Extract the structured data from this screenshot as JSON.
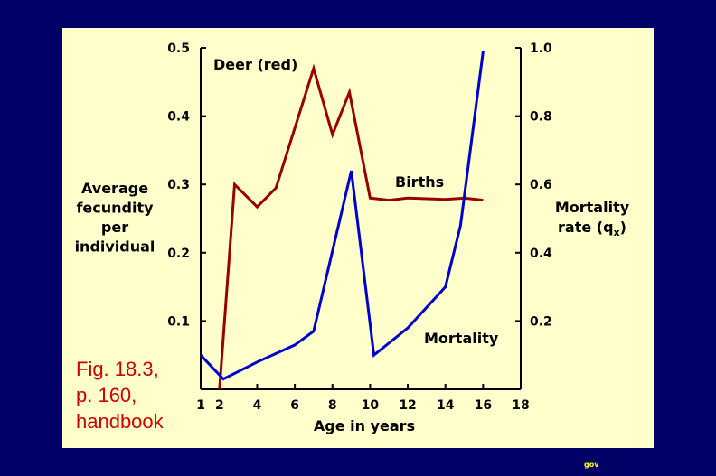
{
  "slide": {
    "caption_lines": [
      "Fig. 18.3,",
      "p. 160,",
      "handbook"
    ],
    "footer": "gov",
    "colors": {
      "background": "#000066",
      "panel": "#ffffcc",
      "caption": "#cc0000",
      "footer": "#ffff00"
    }
  },
  "chart_data": {
    "type": "line",
    "xlabel": "Age in years",
    "ylabel_left_lines": [
      "Average",
      "fecundity",
      "per",
      "individual"
    ],
    "ylabel_right_lines": [
      "Mortality",
      "rate (q"
    ],
    "ylabel_right_subscript": "x",
    "ylabel_right_suffix": ")",
    "xlim": [
      1,
      18
    ],
    "x_ticks": [
      1,
      2,
      4,
      6,
      8,
      10,
      12,
      14,
      16,
      18
    ],
    "ylim_left": [
      0,
      0.5
    ],
    "y_ticks_left": [
      "0.1",
      "0.2",
      "0.3",
      "0.4",
      "0.5"
    ],
    "ylim_right": [
      0,
      1.0
    ],
    "y_ticks_right": [
      "0.2",
      "0.4",
      "0.6",
      "0.8",
      "1.0"
    ],
    "annotations": {
      "deer": "Deer (red)",
      "births": "Births",
      "mortality": "Mortality"
    },
    "series": [
      {
        "name": "Births",
        "axis": "left",
        "color": "#990000",
        "x": [
          2,
          2.8,
          4,
          5,
          7,
          8,
          8.9,
          10,
          11,
          12,
          14,
          15,
          16
        ],
        "y": [
          0,
          0.3,
          0.267,
          0.295,
          0.47,
          0.373,
          0.435,
          0.28,
          0.277,
          0.28,
          0.278,
          0.28,
          0.277
        ]
      },
      {
        "name": "Mortality",
        "axis": "right",
        "color": "#0000cc",
        "x": [
          1,
          2.2,
          4,
          6,
          7,
          9,
          10.2,
          12,
          14,
          14.8,
          16
        ],
        "y": [
          0.1,
          0.03,
          0.08,
          0.13,
          0.17,
          0.64,
          0.1,
          0.18,
          0.3,
          0.48,
          0.99
        ]
      }
    ]
  }
}
